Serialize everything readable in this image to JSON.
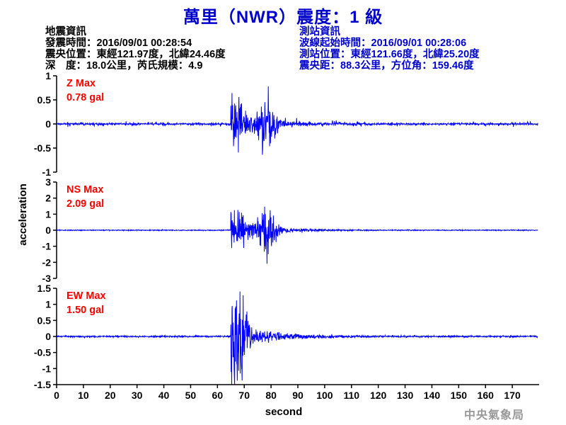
{
  "title": "萬里（NWR）震度：1 級",
  "earthquake_info": {
    "heading": "地震資訊",
    "origin_time": "發震時間：2016/09/01 00:28:54",
    "epicenter": "震央位置：東經121.97度，北緯24.46度",
    "depth_magnitude": "深　度：18.0公里，芮氏規模：4.9"
  },
  "station_info": {
    "heading": "測站資訊",
    "wave_start": "波線起始時間：2016/09/01 00:28:06",
    "station_location": "測站位置：東經121.66度，北緯25.20度",
    "distance": "震央距：88.3公里，方位角：159.46度"
  },
  "watermark": "中央氣象局",
  "colors": {
    "trace": "#0000ff",
    "label": "#ff0000",
    "title": "#0000cc"
  },
  "chart_data": {
    "type": "line",
    "xlabel": "second",
    "ylabel": "acceleration",
    "xlim": [
      0,
      180
    ],
    "xticks": [
      "0",
      "10",
      "20",
      "30",
      "40",
      "50",
      "60",
      "70",
      "80",
      "90",
      "100",
      "110",
      "120",
      "130",
      "140",
      "150",
      "160",
      "170"
    ],
    "panels": [
      {
        "component": "Z",
        "label": "Z Max",
        "max": "0.78 gal",
        "max_value": 0.78,
        "ylim": [
          -1,
          1
        ],
        "yticks": [
          "1",
          "0.5",
          "0",
          "-0.5",
          "-1"
        ],
        "onset": 65,
        "peak_time": 78,
        "noise": 0.05
      },
      {
        "component": "NS",
        "label": "NS Max",
        "max": "2.09 gal",
        "max_value": 2.09,
        "ylim": [
          -3,
          3
        ],
        "yticks": [
          "3",
          "2",
          "1",
          "0",
          "-1",
          "-2",
          "-3"
        ],
        "onset": 65,
        "peak_time": 78,
        "noise": 0.03
      },
      {
        "component": "EW",
        "label": "EW Max",
        "max": "1.50 gal",
        "max_value": 1.5,
        "ylim": [
          -1.5,
          1.5
        ],
        "yticks": [
          "1.5",
          "1",
          "0.5",
          "0",
          "-0.5",
          "-1",
          "-1.5"
        ],
        "onset": 65,
        "peak_time": 67,
        "noise": 0.03
      }
    ]
  }
}
